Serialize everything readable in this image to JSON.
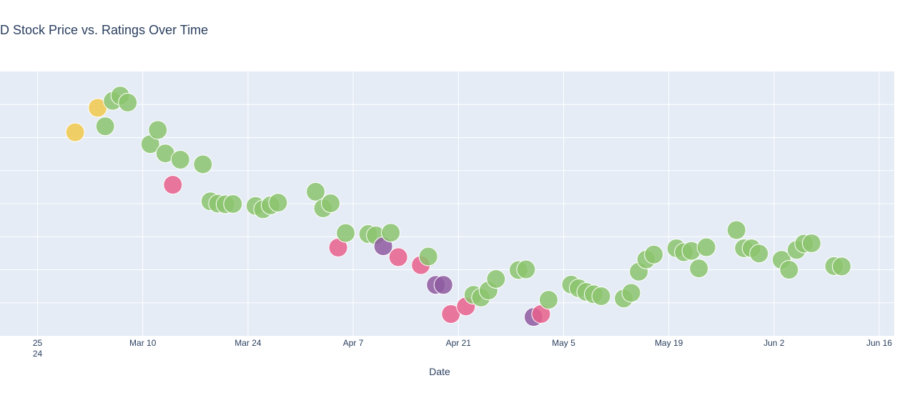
{
  "title": "D Stock Price vs. Ratings Over Time",
  "colors": {
    "plot_bg": "#e5ecf6",
    "grid": "#ffffff",
    "text": "#2a3f5f"
  },
  "chart_data": {
    "type": "scatter",
    "title": "D Stock Price vs. Ratings Over Time",
    "xlabel": "Date",
    "ylabel": "",
    "x_tick_labels": [
      {
        "date": "2024-02-25",
        "label": "25",
        "sublabel": "24"
      },
      {
        "date": "2024-03-10",
        "label": "Mar 10"
      },
      {
        "date": "2024-03-24",
        "label": "Mar 24"
      },
      {
        "date": "2024-04-07",
        "label": "Apr 7"
      },
      {
        "date": "2024-04-21",
        "label": "Apr 21"
      },
      {
        "date": "2024-05-05",
        "label": "May 5"
      },
      {
        "date": "2024-05-19",
        "label": "May 19"
      },
      {
        "date": "2024-06-02",
        "label": "Jun 2"
      },
      {
        "date": "2024-06-16",
        "label": "Jun 16"
      }
    ],
    "xlim": [
      "2024-02-20",
      "2024-06-18"
    ],
    "ylim": [
      0,
      8
    ],
    "y_tick_labels_visible": false,
    "marker_colors": {
      "yellow": "#f2c94c",
      "green": "#8cc46e",
      "pink": "#e8608c",
      "purple": "#8e5aa0"
    },
    "points": [
      {
        "date": "2024-03-01",
        "y": 6.16,
        "color": "yellow"
      },
      {
        "date": "2024-03-04",
        "y": 6.9,
        "color": "yellow"
      },
      {
        "date": "2024-03-05",
        "y": 6.34,
        "color": "green"
      },
      {
        "date": "2024-03-06",
        "y": 7.11,
        "color": "green"
      },
      {
        "date": "2024-03-07",
        "y": 7.27,
        "color": "green"
      },
      {
        "date": "2024-03-08",
        "y": 7.06,
        "color": "green"
      },
      {
        "date": "2024-03-11",
        "y": 5.8,
        "color": "green"
      },
      {
        "date": "2024-03-12",
        "y": 6.23,
        "color": "green"
      },
      {
        "date": "2024-03-13",
        "y": 5.52,
        "color": "green"
      },
      {
        "date": "2024-03-14",
        "y": 4.57,
        "color": "pink"
      },
      {
        "date": "2024-03-15",
        "y": 5.33,
        "color": "green"
      },
      {
        "date": "2024-03-18",
        "y": 5.19,
        "color": "green"
      },
      {
        "date": "2024-03-19",
        "y": 4.07,
        "color": "green"
      },
      {
        "date": "2024-03-20",
        "y": 4.0,
        "color": "green"
      },
      {
        "date": "2024-03-21",
        "y": 3.98,
        "color": "green"
      },
      {
        "date": "2024-03-22",
        "y": 3.99,
        "color": "green"
      },
      {
        "date": "2024-03-25",
        "y": 3.93,
        "color": "green"
      },
      {
        "date": "2024-03-26",
        "y": 3.83,
        "color": "green"
      },
      {
        "date": "2024-03-27",
        "y": 3.95,
        "color": "green"
      },
      {
        "date": "2024-03-28",
        "y": 4.03,
        "color": "green"
      },
      {
        "date": "2024-04-02",
        "y": 4.36,
        "color": "green"
      },
      {
        "date": "2024-04-03",
        "y": 3.86,
        "color": "green"
      },
      {
        "date": "2024-04-04",
        "y": 4.01,
        "color": "green"
      },
      {
        "date": "2024-04-05",
        "y": 2.67,
        "color": "pink"
      },
      {
        "date": "2024-04-06",
        "y": 3.11,
        "color": "green"
      },
      {
        "date": "2024-04-09",
        "y": 3.08,
        "color": "green"
      },
      {
        "date": "2024-04-10",
        "y": 3.04,
        "color": "green"
      },
      {
        "date": "2024-04-11",
        "y": 2.71,
        "color": "purple"
      },
      {
        "date": "2024-04-12",
        "y": 3.12,
        "color": "green"
      },
      {
        "date": "2024-04-13",
        "y": 2.38,
        "color": "pink"
      },
      {
        "date": "2024-04-16",
        "y": 2.14,
        "color": "pink"
      },
      {
        "date": "2024-04-17",
        "y": 2.4,
        "color": "green"
      },
      {
        "date": "2024-04-18",
        "y": 1.54,
        "color": "purple"
      },
      {
        "date": "2024-04-19",
        "y": 1.54,
        "color": "purple"
      },
      {
        "date": "2024-04-20",
        "y": 0.66,
        "color": "pink"
      },
      {
        "date": "2024-04-22",
        "y": 0.89,
        "color": "pink"
      },
      {
        "date": "2024-04-23",
        "y": 1.24,
        "color": "green"
      },
      {
        "date": "2024-04-24",
        "y": 1.16,
        "color": "green"
      },
      {
        "date": "2024-04-25",
        "y": 1.37,
        "color": "green"
      },
      {
        "date": "2024-04-26",
        "y": 1.72,
        "color": "green"
      },
      {
        "date": "2024-04-29",
        "y": 1.99,
        "color": "green"
      },
      {
        "date": "2024-04-30",
        "y": 2.01,
        "color": "green"
      },
      {
        "date": "2024-05-01",
        "y": 0.57,
        "color": "purple"
      },
      {
        "date": "2024-05-02",
        "y": 0.66,
        "color": "pink"
      },
      {
        "date": "2024-05-03",
        "y": 1.09,
        "color": "green"
      },
      {
        "date": "2024-05-06",
        "y": 1.55,
        "color": "green"
      },
      {
        "date": "2024-05-07",
        "y": 1.44,
        "color": "green"
      },
      {
        "date": "2024-05-08",
        "y": 1.33,
        "color": "green"
      },
      {
        "date": "2024-05-09",
        "y": 1.26,
        "color": "green"
      },
      {
        "date": "2024-05-10",
        "y": 1.2,
        "color": "green"
      },
      {
        "date": "2024-05-13",
        "y": 1.13,
        "color": "green"
      },
      {
        "date": "2024-05-14",
        "y": 1.3,
        "color": "green"
      },
      {
        "date": "2024-05-15",
        "y": 1.94,
        "color": "green"
      },
      {
        "date": "2024-05-16",
        "y": 2.31,
        "color": "green"
      },
      {
        "date": "2024-05-17",
        "y": 2.46,
        "color": "green"
      },
      {
        "date": "2024-05-20",
        "y": 2.65,
        "color": "green"
      },
      {
        "date": "2024-05-21",
        "y": 2.53,
        "color": "green"
      },
      {
        "date": "2024-05-22",
        "y": 2.57,
        "color": "green"
      },
      {
        "date": "2024-05-23",
        "y": 2.04,
        "color": "green"
      },
      {
        "date": "2024-05-24",
        "y": 2.68,
        "color": "green"
      },
      {
        "date": "2024-05-28",
        "y": 3.2,
        "color": "green"
      },
      {
        "date": "2024-05-29",
        "y": 2.65,
        "color": "green"
      },
      {
        "date": "2024-05-30",
        "y": 2.65,
        "color": "green"
      },
      {
        "date": "2024-05-31",
        "y": 2.49,
        "color": "green"
      },
      {
        "date": "2024-06-03",
        "y": 2.3,
        "color": "green"
      },
      {
        "date": "2024-06-04",
        "y": 2.0,
        "color": "green"
      },
      {
        "date": "2024-06-05",
        "y": 2.6,
        "color": "green"
      },
      {
        "date": "2024-06-06",
        "y": 2.79,
        "color": "green"
      },
      {
        "date": "2024-06-07",
        "y": 2.8,
        "color": "green"
      },
      {
        "date": "2024-06-10",
        "y": 2.11,
        "color": "green"
      },
      {
        "date": "2024-06-11",
        "y": 2.1,
        "color": "green"
      }
    ]
  }
}
